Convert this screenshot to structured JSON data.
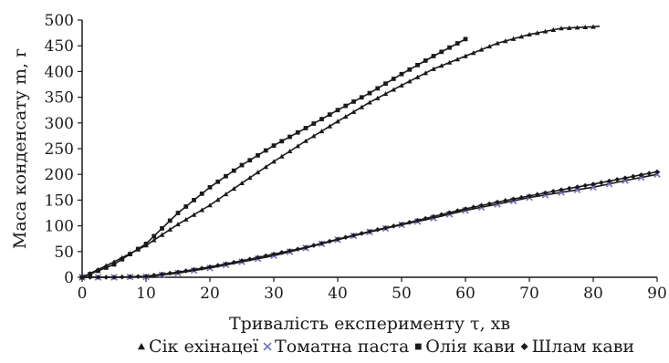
{
  "chart_data": {
    "type": "scatter",
    "xlabel": "Тривалість експерименту τ, хв",
    "ylabel": "Маса конденсату m, г",
    "xlim": [
      0,
      90
    ],
    "ylim": [
      0,
      500
    ],
    "x_ticks": [
      "0",
      "10",
      "20",
      "30",
      "40",
      "50",
      "60",
      "70",
      "80",
      "90"
    ],
    "y_ticks": [
      "0",
      "50",
      "100",
      "150",
      "200",
      "250",
      "300",
      "350",
      "400",
      "450",
      "500"
    ],
    "grid": false,
    "legend_position": "bottom",
    "series": [
      {
        "name": "Сік ехінацеї",
        "marker": "triangle",
        "color": "#1a1a1a",
        "x": [
          0,
          5,
          10,
          15,
          20,
          25,
          30,
          35,
          40,
          45,
          50,
          55,
          60,
          65,
          70,
          75,
          80,
          81
        ],
        "y": [
          0,
          30,
          62,
          103,
          140,
          183,
          225,
          265,
          303,
          340,
          373,
          405,
          430,
          455,
          472,
          484,
          487,
          488
        ]
      },
      {
        "name": "Томатна паста",
        "marker": "cross",
        "color": "#7b7bbd",
        "x": [
          0,
          5,
          10,
          15,
          20,
          25,
          30,
          35,
          40,
          45,
          50,
          55,
          60,
          65,
          70,
          75,
          80,
          85,
          90
        ],
        "y": [
          0,
          0,
          1,
          8,
          18,
          30,
          42,
          57,
          73,
          88,
          102,
          115,
          130,
          142,
          155,
          165,
          175,
          188,
          200
        ]
      },
      {
        "name": "Олія кави",
        "marker": "square",
        "color": "#1a1a1a",
        "x": [
          0,
          5,
          10,
          15,
          20,
          25,
          30,
          35,
          40,
          45,
          50,
          55,
          60
        ],
        "y": [
          0,
          25,
          65,
          125,
          175,
          218,
          256,
          290,
          325,
          358,
          395,
          430,
          463
        ]
      },
      {
        "name": "Шлам кави",
        "marker": "diamond",
        "color": "#1a1a1a",
        "x": [
          0,
          5,
          10,
          15,
          20,
          25,
          30,
          35,
          40,
          45,
          50,
          55,
          60,
          65,
          70,
          75,
          80,
          85,
          90
        ],
        "y": [
          0,
          0,
          2,
          10,
          20,
          32,
          45,
          58,
          74,
          89,
          103,
          118,
          133,
          146,
          158,
          170,
          181,
          193,
          205
        ]
      }
    ]
  }
}
